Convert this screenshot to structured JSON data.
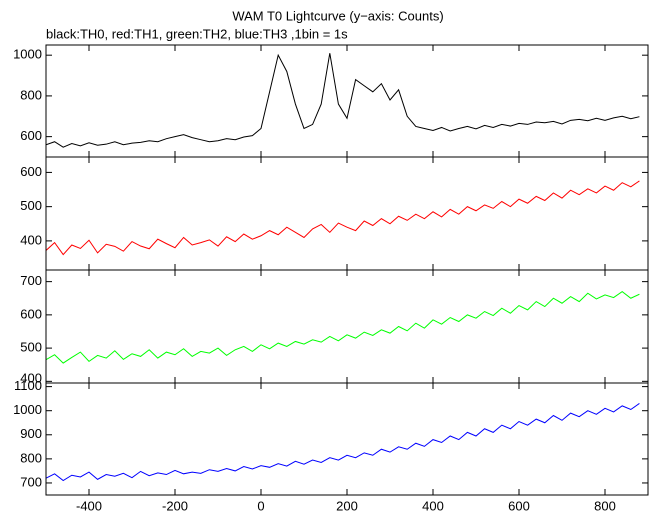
{
  "chart_data": [
    {
      "type": "line",
      "title": "WAM T0 Lightcurve (y−axis: Counts)",
      "subtitle": "black:TH0, red:TH1, green:TH2, blue:TH3 ,1bin = 1s",
      "x": [
        -500,
        -480,
        -460,
        -440,
        -420,
        -400,
        -380,
        -360,
        -340,
        -320,
        -300,
        -280,
        -260,
        -240,
        -220,
        -200,
        -180,
        -160,
        -140,
        -120,
        -100,
        -80,
        -60,
        -40,
        -20,
        0,
        20,
        40,
        60,
        80,
        100,
        120,
        140,
        160,
        180,
        200,
        220,
        240,
        260,
        280,
        300,
        320,
        340,
        360,
        380,
        400,
        420,
        440,
        460,
        480,
        500,
        520,
        540,
        560,
        580,
        600,
        620,
        640,
        660,
        680,
        700,
        720,
        740,
        760,
        780,
        800,
        820,
        840,
        860,
        880
      ],
      "series": [
        {
          "color": "#000000",
          "values": [
            560,
            575,
            548,
            566,
            555,
            570,
            558,
            563,
            575,
            560,
            568,
            572,
            580,
            575,
            590,
            600,
            610,
            595,
            585,
            575,
            580,
            590,
            585,
            598,
            605,
            640,
            820,
            1000,
            920,
            760,
            640,
            660,
            760,
            1010,
            760,
            690,
            880,
            850,
            820,
            860,
            780,
            830,
            700,
            650,
            640,
            630,
            645,
            628,
            640,
            650,
            638,
            655,
            645,
            660,
            652,
            665,
            660,
            672,
            668,
            675,
            662,
            680,
            685,
            678,
            690,
            680,
            692,
            700,
            688,
            698
          ]
        }
      ],
      "xlim": [
        -500,
        900
      ],
      "xticks": [
        -400,
        -200,
        0,
        200,
        400,
        600,
        800
      ],
      "ylim": [
        500,
        1050
      ],
      "yticks": [
        600,
        800,
        1000
      ]
    },
    {
      "type": "line",
      "x": [
        -500,
        -480,
        -460,
        -440,
        -420,
        -400,
        -380,
        -360,
        -340,
        -320,
        -300,
        -280,
        -260,
        -240,
        -220,
        -200,
        -180,
        -160,
        -140,
        -120,
        -100,
        -80,
        -60,
        -40,
        -20,
        0,
        20,
        40,
        60,
        80,
        100,
        120,
        140,
        160,
        180,
        200,
        220,
        240,
        260,
        280,
        300,
        320,
        340,
        360,
        380,
        400,
        420,
        440,
        460,
        480,
        500,
        520,
        540,
        560,
        580,
        600,
        620,
        640,
        660,
        680,
        700,
        720,
        740,
        760,
        780,
        800,
        820,
        840,
        860,
        880
      ],
      "series": [
        {
          "color": "#ff0000",
          "values": [
            372,
            395,
            360,
            388,
            378,
            402,
            365,
            390,
            384,
            370,
            398,
            385,
            377,
            405,
            392,
            380,
            410,
            388,
            395,
            403,
            385,
            412,
            398,
            420,
            405,
            415,
            430,
            418,
            440,
            425,
            410,
            435,
            448,
            425,
            452,
            440,
            430,
            458,
            445,
            465,
            450,
            472,
            460,
            478,
            465,
            485,
            470,
            492,
            478,
            500,
            488,
            505,
            495,
            515,
            500,
            522,
            510,
            530,
            518,
            540,
            525,
            548,
            535,
            552,
            540,
            560,
            548,
            570,
            558,
            575
          ]
        }
      ],
      "xlim": [
        -500,
        900
      ],
      "xticks": [
        -400,
        -200,
        0,
        200,
        400,
        600,
        800
      ],
      "ylim": [
        315,
        645
      ],
      "yticks": [
        400,
        500,
        600
      ]
    },
    {
      "type": "line",
      "x": [
        -500,
        -480,
        -460,
        -440,
        -420,
        -400,
        -380,
        -360,
        -340,
        -320,
        -300,
        -280,
        -260,
        -240,
        -220,
        -200,
        -180,
        -160,
        -140,
        -120,
        -100,
        -80,
        -60,
        -40,
        -20,
        0,
        20,
        40,
        60,
        80,
        100,
        120,
        140,
        160,
        180,
        200,
        220,
        240,
        260,
        280,
        300,
        320,
        340,
        360,
        380,
        400,
        420,
        440,
        460,
        480,
        500,
        520,
        540,
        560,
        580,
        600,
        620,
        640,
        660,
        680,
        700,
        720,
        740,
        760,
        780,
        800,
        820,
        840,
        860,
        880
      ],
      "series": [
        {
          "color": "#00ff00",
          "values": [
            465,
            480,
            455,
            472,
            488,
            460,
            478,
            470,
            492,
            466,
            483,
            475,
            495,
            470,
            488,
            480,
            498,
            475,
            490,
            485,
            500,
            478,
            495,
            505,
            490,
            510,
            498,
            515,
            505,
            520,
            512,
            525,
            518,
            535,
            522,
            540,
            530,
            548,
            538,
            555,
            545,
            565,
            552,
            575,
            560,
            585,
            572,
            592,
            580,
            600,
            590,
            610,
            598,
            620,
            605,
            628,
            615,
            640,
            625,
            650,
            635,
            655,
            640,
            665,
            648,
            660,
            652,
            670,
            650,
            662
          ]
        }
      ],
      "xlim": [
        -500,
        900
      ],
      "xticks": [
        -400,
        -200,
        0,
        200,
        400,
        600,
        800
      ],
      "ylim": [
        395,
        735
      ],
      "yticks": [
        400,
        500,
        600,
        700
      ]
    },
    {
      "type": "line",
      "x": [
        -500,
        -480,
        -460,
        -440,
        -420,
        -400,
        -380,
        -360,
        -340,
        -320,
        -300,
        -280,
        -260,
        -240,
        -220,
        -200,
        -180,
        -160,
        -140,
        -120,
        -100,
        -80,
        -60,
        -40,
        -20,
        0,
        20,
        40,
        60,
        80,
        100,
        120,
        140,
        160,
        180,
        200,
        220,
        240,
        260,
        280,
        300,
        320,
        340,
        360,
        380,
        400,
        420,
        440,
        460,
        480,
        500,
        520,
        540,
        560,
        580,
        600,
        620,
        640,
        660,
        680,
        700,
        720,
        740,
        760,
        780,
        800,
        820,
        840,
        860,
        880
      ],
      "series": [
        {
          "color": "#0000ff",
          "values": [
            720,
            738,
            710,
            732,
            725,
            745,
            715,
            735,
            728,
            740,
            722,
            748,
            730,
            742,
            735,
            752,
            738,
            745,
            740,
            755,
            748,
            760,
            750,
            768,
            758,
            772,
            765,
            780,
            770,
            790,
            778,
            795,
            785,
            805,
            795,
            815,
            805,
            825,
            815,
            840,
            828,
            850,
            840,
            865,
            852,
            880,
            868,
            895,
            880,
            910,
            895,
            925,
            910,
            940,
            925,
            955,
            940,
            965,
            950,
            980,
            960,
            990,
            975,
            1000,
            985,
            1010,
            995,
            1020,
            1005,
            1030
          ]
        }
      ],
      "xlim": [
        -500,
        900
      ],
      "xticks": [
        -400,
        -200,
        0,
        200,
        400,
        600,
        800
      ],
      "ylim": [
        650,
        1115
      ],
      "yticks": [
        700,
        800,
        900,
        1000,
        1100
      ],
      "xtick_labels": true
    }
  ]
}
